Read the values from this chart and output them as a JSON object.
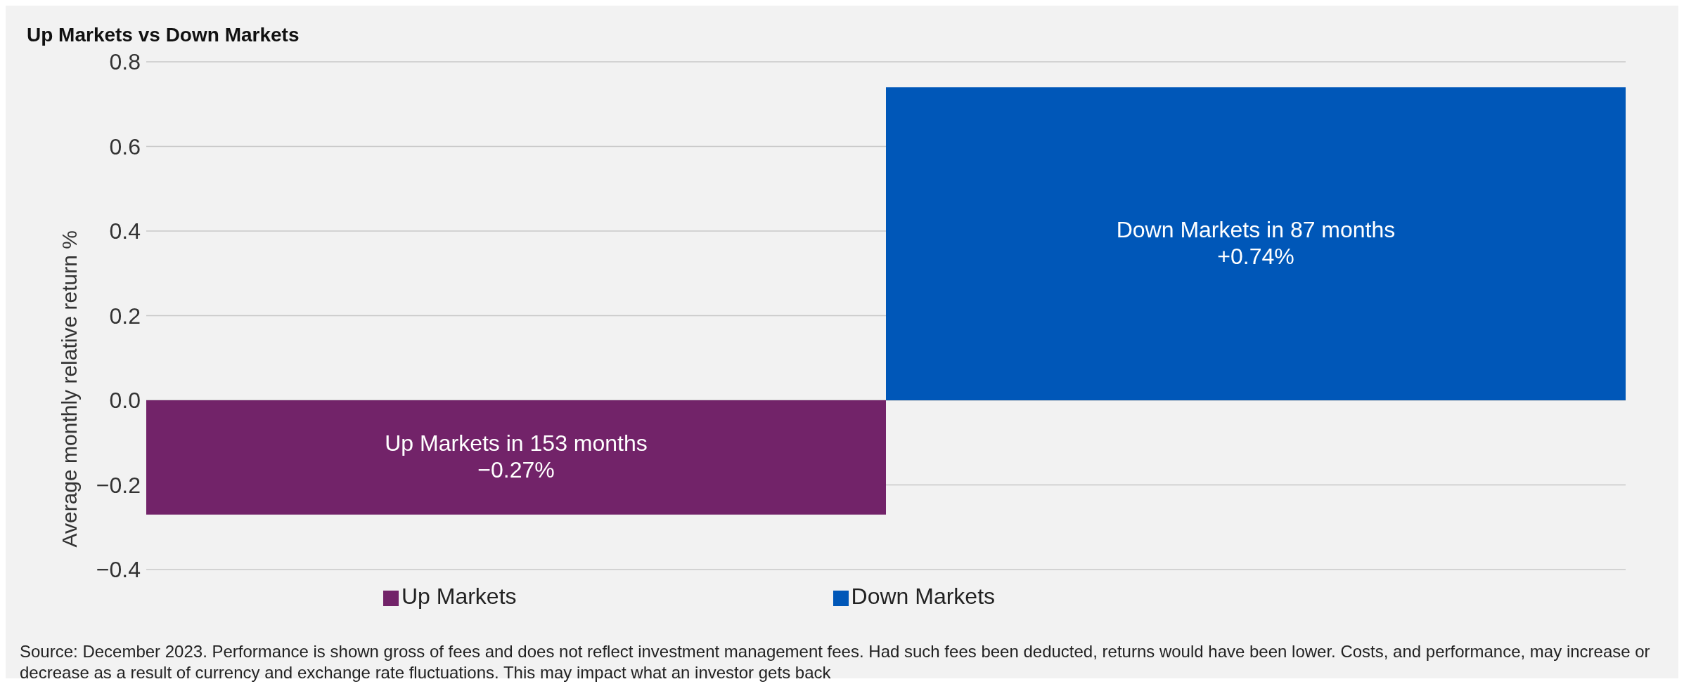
{
  "chart_data": {
    "type": "bar",
    "title": "Up Markets vs Down Markets",
    "ylabel": "Average monthly relative return %",
    "categories": [
      null,
      null
    ],
    "series": [
      {
        "name": "Up Markets",
        "color": "#722369",
        "values": [
          -0.27,
          null
        ],
        "value_labels": [
          "Up Markets in 153 months\n−0.27%",
          null
        ]
      },
      {
        "name": "Down Markets",
        "color": "#0057b8",
        "values": [
          null,
          0.74
        ],
        "value_labels": [
          null,
          "Down Markets in 87 months\n+0.74%"
        ]
      }
    ],
    "ylim": [
      -0.4,
      0.8
    ],
    "yticks": [
      {
        "value": -0.4,
        "label": "−0.4"
      },
      {
        "value": -0.2,
        "label": "−0.2"
      },
      {
        "value": 0,
        "label": "0.0"
      },
      {
        "value": 0.2,
        "label": "0.2"
      },
      {
        "value": 0.4,
        "label": "0.4"
      },
      {
        "value": 0.6,
        "label": "0.6"
      },
      {
        "value": 0.8,
        "label": "0.8"
      }
    ],
    "grid": "y",
    "legend": "bottom",
    "annotations": [
      "Source: December 2023. Performance is shown gross of fees and does not reflect investment management fees. Had such fees been deducted, returns would have been lower. Costs, and performance, may increase or decrease as a result of currency and exchange rate fluctuations. This may impact what an investor gets back"
    ]
  }
}
